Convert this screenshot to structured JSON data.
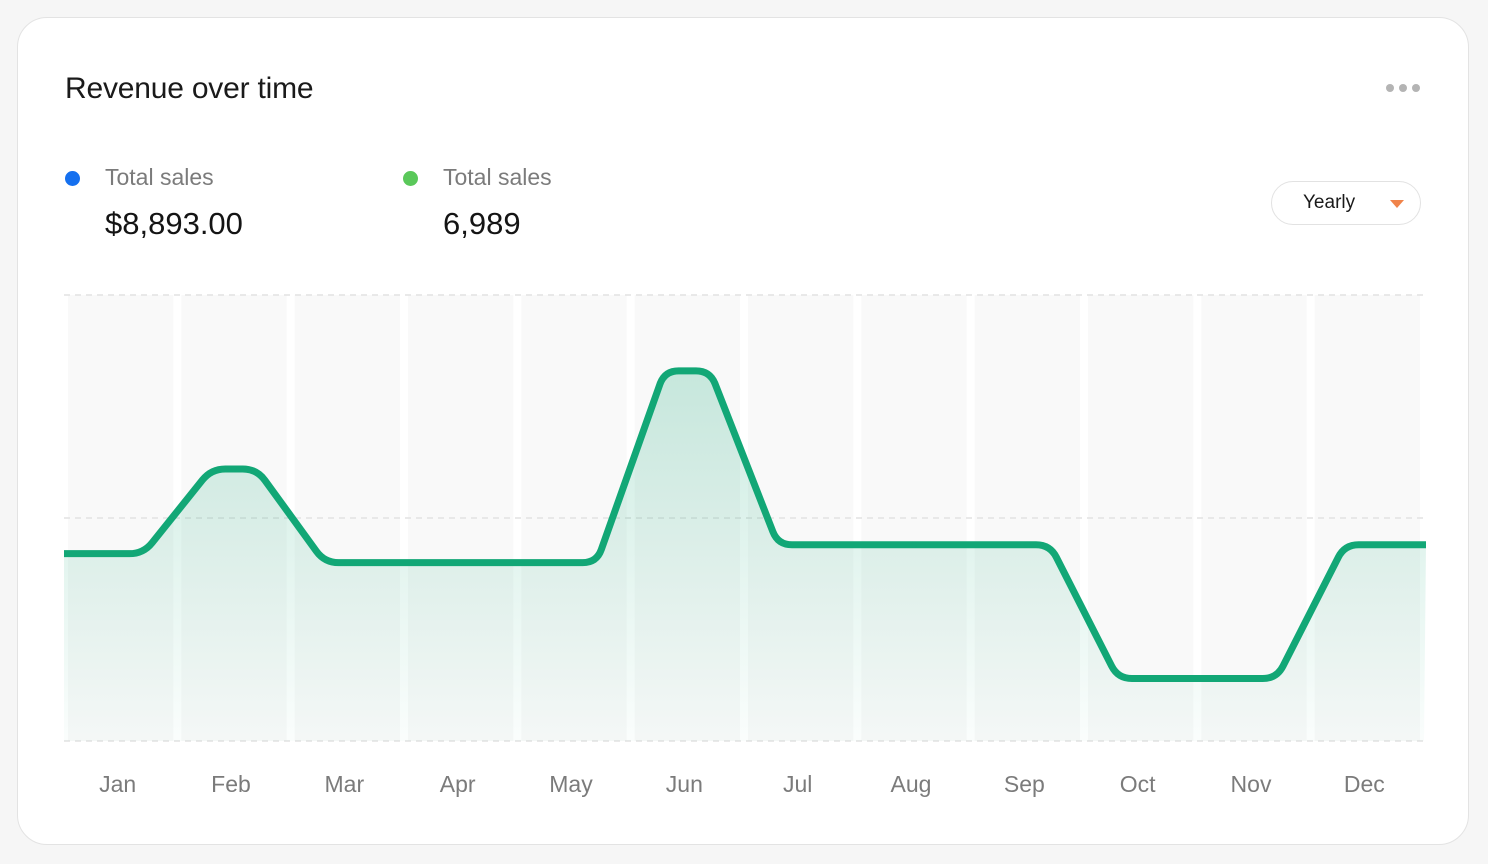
{
  "card": {
    "title": "Revenue over time",
    "more_icon": "more-horizontal-icon"
  },
  "stats": [
    {
      "label": "Total sales",
      "value": "$8,893.00",
      "color": "#1570ef"
    },
    {
      "label": "Total sales",
      "value": "6,989",
      "color": "#5ac85a"
    }
  ],
  "period_select": {
    "selected": "Yearly",
    "caret_icon": "caret-down-icon",
    "caret_color": "#f0834a"
  },
  "chart_data": {
    "type": "area",
    "categories": [
      "Jan",
      "Feb",
      "Mar",
      "Apr",
      "May",
      "Jun",
      "Jul",
      "Aug",
      "Sep",
      "Oct",
      "Nov",
      "Dec"
    ],
    "series": [
      {
        "values": [
          42,
          61,
          40,
          40,
          40,
          83,
          44,
          44,
          44,
          14,
          14,
          44
        ],
        "color": "#12a776"
      }
    ],
    "ylim": [
      0,
      100
    ],
    "grid": true,
    "xlabel": "",
    "ylabel": ""
  }
}
